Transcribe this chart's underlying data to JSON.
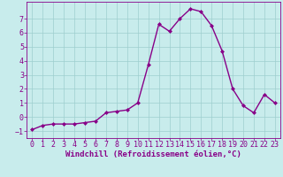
{
  "x": [
    0,
    1,
    2,
    3,
    4,
    5,
    6,
    7,
    8,
    9,
    10,
    11,
    12,
    13,
    14,
    15,
    16,
    17,
    18,
    19,
    20,
    21,
    22,
    23
  ],
  "y": [
    -0.9,
    -0.6,
    -0.5,
    -0.5,
    -0.5,
    -0.4,
    -0.3,
    0.3,
    0.4,
    0.5,
    1.0,
    3.7,
    6.6,
    6.1,
    7.0,
    7.7,
    7.5,
    6.5,
    4.7,
    2.0,
    0.8,
    0.3,
    1.6,
    1.0
  ],
  "line_color": "#880088",
  "marker": "D",
  "marker_size": 2.0,
  "bg_color": "#c8ecec",
  "grid_color": "#9ecece",
  "tick_color": "#880088",
  "label_color": "#880088",
  "xlabel": "Windchill (Refroidissement éolien,°C)",
  "ylim": [
    -1.5,
    8.2
  ],
  "xlim": [
    -0.5,
    23.5
  ],
  "yticks": [
    -1,
    0,
    1,
    2,
    3,
    4,
    5,
    6,
    7
  ],
  "xticks": [
    0,
    1,
    2,
    3,
    4,
    5,
    6,
    7,
    8,
    9,
    10,
    11,
    12,
    13,
    14,
    15,
    16,
    17,
    18,
    19,
    20,
    21,
    22,
    23
  ],
  "font_family": "monospace",
  "xlabel_fontsize": 6.5,
  "tick_fontsize": 6,
  "line_width": 1.0
}
